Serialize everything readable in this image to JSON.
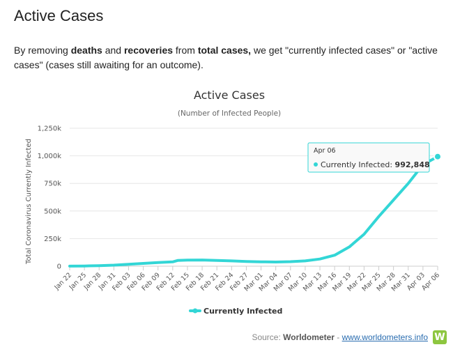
{
  "page": {
    "heading": "Active Cases",
    "intro": {
      "p1": "By removing ",
      "b1": "deaths",
      "p2": " and ",
      "b2": "recoveries",
      "p3": " from ",
      "b3": "total cases,",
      "p4": " we get \"currently infected cases\" or \"active cases\" (cases still awaiting for an outcome)."
    },
    "source": {
      "prefix": "Source: ",
      "name": "Worldometer",
      "sep": " - ",
      "link": "www.worldometers.info",
      "logo_letter": "W"
    }
  },
  "chart_data": {
    "type": "line",
    "title": "Active Cases",
    "subtitle": "(Number of Infected People)",
    "ylabel": "Total Coronavirus Currently Infected",
    "xlabel": "",
    "ylim": [
      0,
      1250000
    ],
    "yticks": [
      0,
      250000,
      500000,
      750000,
      1000000,
      1250000
    ],
    "ytick_labels": [
      "0",
      "250k",
      "500k",
      "750k",
      "1,000k",
      "1,250k"
    ],
    "grid": true,
    "legend": "bottom-center",
    "color": "#33d6d6",
    "tick_labels": [
      "Jan 22",
      "Jan 25",
      "Jan 28",
      "Jan 31",
      "Feb 03",
      "Feb 06",
      "Feb 09",
      "Feb 12",
      "Feb 15",
      "Feb 18",
      "Feb 21",
      "Feb 24",
      "Feb 27",
      "Mar 01",
      "Mar 04",
      "Mar 07",
      "Mar 10",
      "Mar 13",
      "Mar 16",
      "Mar 19",
      "Mar 22",
      "Mar 25",
      "Mar 28",
      "Mar 31",
      "Apr 03",
      "Apr 06"
    ],
    "series": [
      {
        "name": "Currently Infected",
        "x": [
          "Jan 22",
          "Jan 25",
          "Jan 28",
          "Jan 31",
          "Feb 03",
          "Feb 06",
          "Feb 09",
          "Feb 12",
          "Feb 13",
          "Feb 15",
          "Feb 18",
          "Feb 21",
          "Feb 24",
          "Feb 27",
          "Mar 01",
          "Mar 04",
          "Mar 07",
          "Mar 10",
          "Mar 13",
          "Mar 16",
          "Mar 19",
          "Mar 22",
          "Mar 25",
          "Mar 28",
          "Mar 31",
          "Apr 03",
          "Apr 06"
        ],
        "values": [
          510,
          1900,
          5200,
          9300,
          17000,
          25000,
          33000,
          39000,
          52000,
          55000,
          56000,
          52000,
          48000,
          43000,
          40000,
          38000,
          41000,
          48000,
          65000,
          100000,
          175000,
          290000,
          450000,
          600000,
          750000,
          920000,
          992848
        ]
      }
    ],
    "tooltip": {
      "date": "Apr 06",
      "series": "Currently Infected",
      "value": "992,848"
    }
  }
}
